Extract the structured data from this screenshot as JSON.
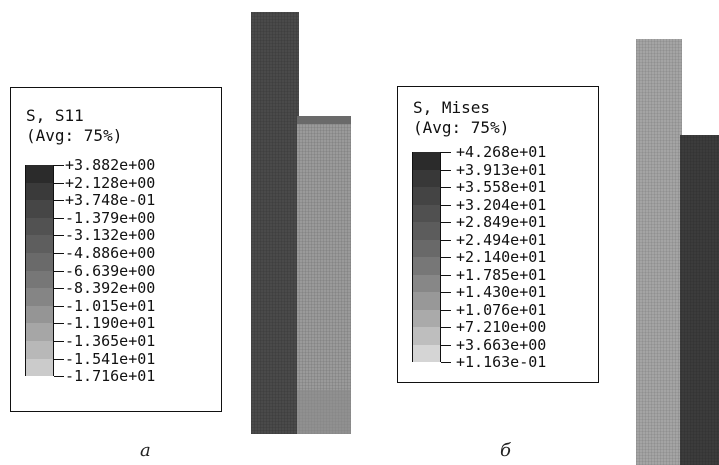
{
  "panel_a": {
    "title_line1": "S, S11",
    "title_line2": "(Avg: 75%)",
    "values": [
      "+3.882e+00",
      "+2.128e+00",
      "+3.748e-01",
      "-1.379e+00",
      "-3.132e+00",
      "-4.886e+00",
      "-6.639e+00",
      "-8.392e+00",
      "-1.015e+01",
      "-1.190e+01",
      "-1.365e+01",
      "-1.541e+01",
      "-1.716e+01"
    ],
    "band_colors": [
      "#2b2b2b",
      "#3a3a3a",
      "#464646",
      "#525252",
      "#5e5e5e",
      "#6a6a6a",
      "#777777",
      "#858585",
      "#959595",
      "#a6a6a6",
      "#b8b8b8",
      "#cbcbcb"
    ],
    "caption": "а"
  },
  "panel_b": {
    "title_line1": "S, Mises",
    "title_line2": "(Avg: 75%)",
    "values": [
      "+4.268e+01",
      "+3.913e+01",
      "+3.558e+01",
      "+3.204e+01",
      "+2.849e+01",
      "+2.494e+01",
      "+2.140e+01",
      "+1.785e+01",
      "+1.430e+01",
      "+1.076e+01",
      "+7.210e+00",
      "+3.663e+00",
      "+1.163e-01"
    ],
    "band_colors": [
      "#2b2b2b",
      "#383838",
      "#444444",
      "#505050",
      "#5c5c5c",
      "#696969",
      "#777777",
      "#878787",
      "#989898",
      "#aaaaaa",
      "#bebebe",
      "#d5d5d5"
    ],
    "caption": "б"
  }
}
